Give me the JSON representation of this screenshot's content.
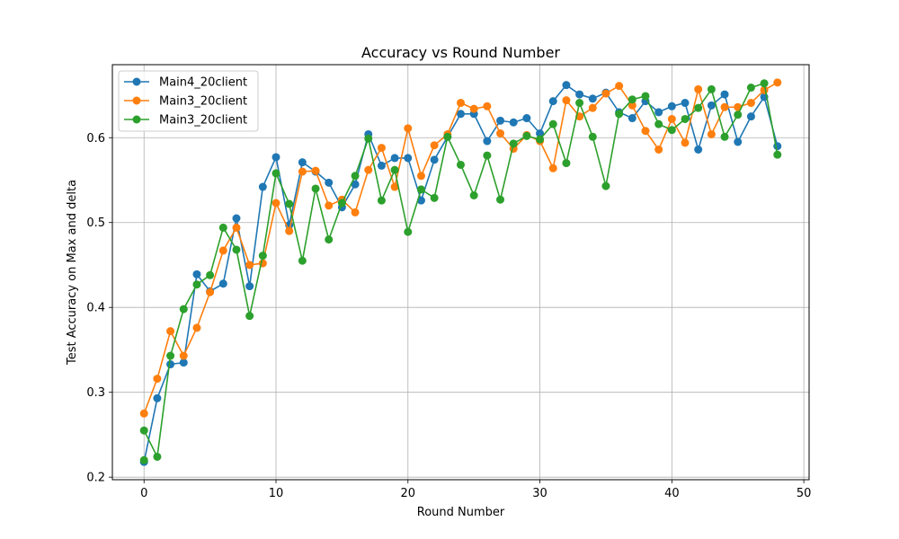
{
  "chart_data": {
    "type": "line",
    "title": "Accuracy vs Round Number",
    "xlabel": "Round Number",
    "ylabel": "Test Accuracy on Max and delta",
    "xlim": [
      -2.4,
      50.4
    ],
    "ylim": [
      0.197,
      0.686
    ],
    "xticks": [
      0,
      10,
      20,
      30,
      40,
      50
    ],
    "yticks": [
      0.2,
      0.3,
      0.4,
      0.5,
      0.6
    ],
    "xtick_labels": [
      "0",
      "10",
      "20",
      "30",
      "40",
      "50"
    ],
    "ytick_labels": [
      "0.2",
      "0.3",
      "0.4",
      "0.5",
      "0.6"
    ],
    "grid": true,
    "legend_position": "top-left",
    "x": [
      0,
      1,
      2,
      3,
      4,
      5,
      6,
      7,
      8,
      9,
      10,
      11,
      12,
      13,
      14,
      15,
      16,
      17,
      18,
      19,
      20,
      21,
      22,
      23,
      24,
      25,
      26,
      27,
      28,
      29,
      30,
      31,
      32,
      33,
      34,
      35,
      36,
      37,
      38,
      39,
      40,
      41,
      42,
      43,
      44,
      45,
      46,
      47,
      48
    ],
    "series": [
      {
        "name": "Main4_20client",
        "color": "#1f77b4",
        "values": [
          0.218,
          0.293,
          0.333,
          0.335,
          0.439,
          0.419,
          0.428,
          0.505,
          0.425,
          0.542,
          0.577,
          0.497,
          0.571,
          0.56,
          0.547,
          0.518,
          0.545,
          0.604,
          0.567,
          0.576,
          0.576,
          0.526,
          0.574,
          0.601,
          0.628,
          0.628,
          0.596,
          0.62,
          0.618,
          0.623,
          0.605,
          0.643,
          0.662,
          0.651,
          0.646,
          0.653,
          0.63,
          0.623,
          0.643,
          0.63,
          0.637,
          0.641,
          0.586,
          0.638,
          0.651,
          0.595,
          0.625,
          0.648,
          0.59
        ]
      },
      {
        "name": "Main3_20client",
        "color": "#ff7f0e",
        "values": [
          0.275,
          0.316,
          0.372,
          0.343,
          0.376,
          0.418,
          0.467,
          0.494,
          0.45,
          0.452,
          0.523,
          0.49,
          0.56,
          0.561,
          0.52,
          0.527,
          0.512,
          0.562,
          0.588,
          0.542,
          0.611,
          0.555,
          0.591,
          0.604,
          0.641,
          0.634,
          0.637,
          0.605,
          0.587,
          0.603,
          0.596,
          0.564,
          0.644,
          0.625,
          0.635,
          0.652,
          0.661,
          0.638,
          0.608,
          0.586,
          0.622,
          0.594,
          0.657,
          0.604,
          0.636,
          0.636,
          0.641,
          0.656,
          0.665
        ]
      },
      {
        "name": "Main3_20client",
        "color": "#2ca02c",
        "values": [
          0.255,
          0.224,
          0.343,
          0.398,
          0.427,
          0.438,
          0.494,
          0.468,
          0.39,
          0.461,
          0.558,
          0.522,
          0.455,
          0.54,
          0.48,
          0.523,
          0.555,
          0.599,
          0.526,
          0.562,
          0.489,
          0.539,
          0.529,
          0.601,
          0.568,
          0.532,
          0.579,
          0.527,
          0.593,
          0.602,
          0.598,
          0.616,
          0.57,
          0.641,
          0.601,
          0.543,
          0.628,
          0.645,
          0.649,
          0.616,
          0.609,
          0.622,
          0.635,
          0.657,
          0.601,
          0.627,
          0.659,
          0.664,
          0.58
        ]
      }
    ],
    "extra_points": [
      {
        "series_index": 2,
        "x": 0,
        "y": 0.22
      }
    ]
  }
}
